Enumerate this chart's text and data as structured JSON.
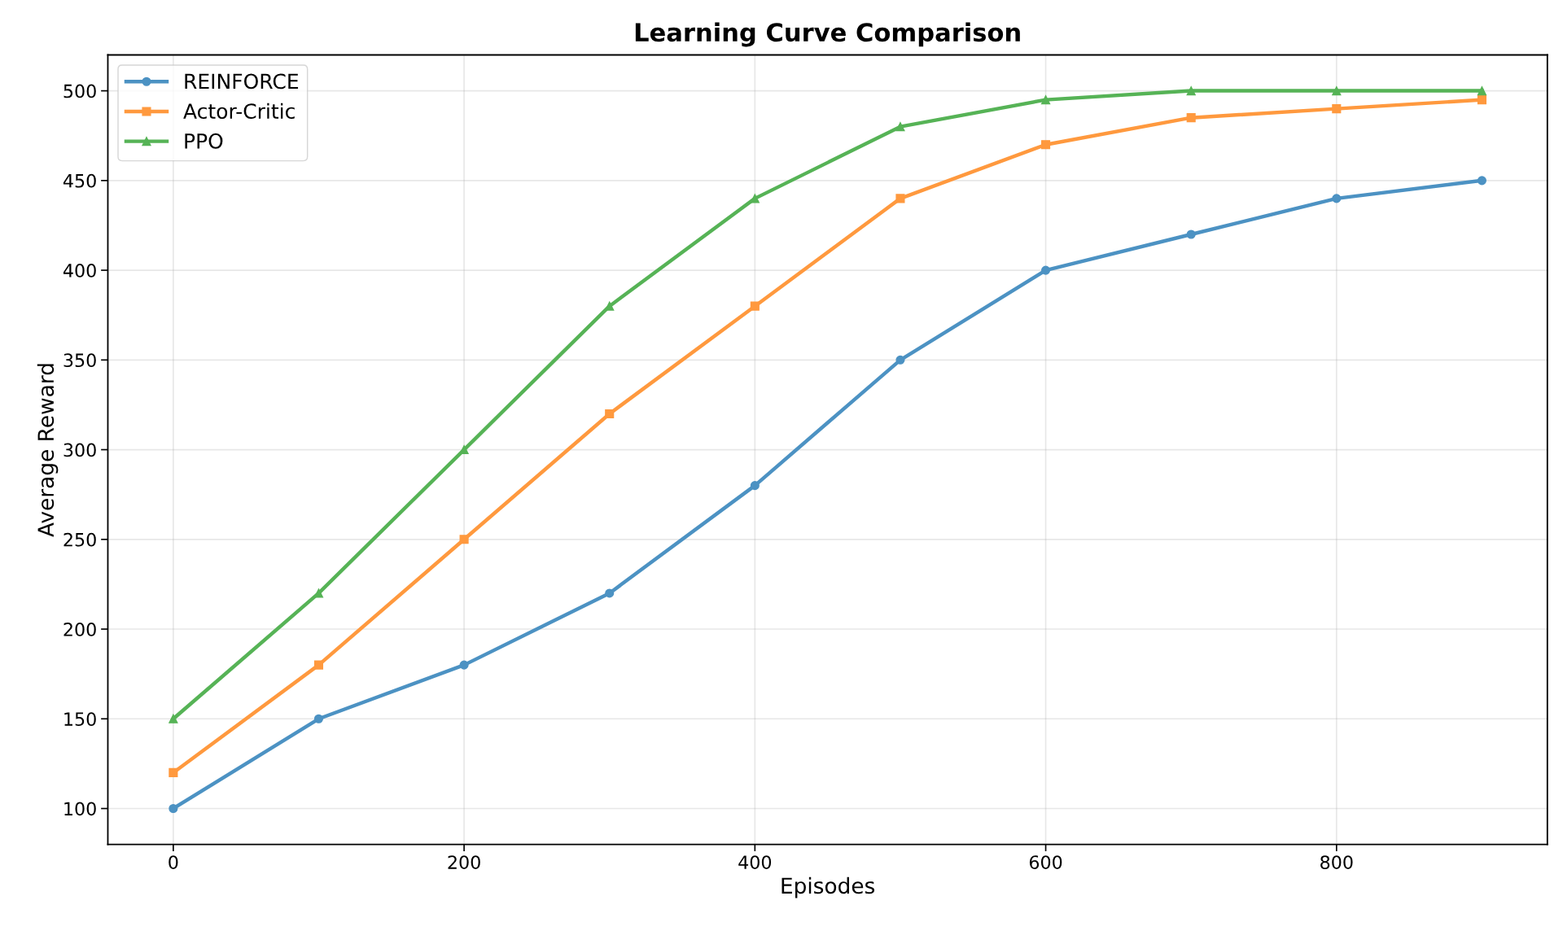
{
  "chart_data": {
    "type": "line",
    "title": "Learning Curve Comparison",
    "xlabel": "Episodes",
    "ylabel": "Average Reward",
    "x": [
      0,
      100,
      200,
      300,
      400,
      500,
      600,
      700,
      800,
      900
    ],
    "series": [
      {
        "name": "REINFORCE",
        "color": "#4c92c3",
        "marker": "circle",
        "values": [
          100,
          150,
          180,
          220,
          280,
          350,
          400,
          420,
          440,
          450
        ]
      },
      {
        "name": "Actor-Critic",
        "color": "#ff993e",
        "marker": "square",
        "values": [
          120,
          180,
          250,
          320,
          380,
          440,
          470,
          485,
          490,
          495
        ]
      },
      {
        "name": "PPO",
        "color": "#56b356",
        "marker": "triangle",
        "values": [
          150,
          220,
          300,
          380,
          440,
          480,
          495,
          500,
          500,
          500
        ]
      }
    ],
    "xlim": [
      -45,
      945
    ],
    "ylim": [
      80,
      520
    ],
    "xticks": [
      0,
      200,
      400,
      600,
      800
    ],
    "yticks": [
      100,
      150,
      200,
      250,
      300,
      350,
      400,
      450,
      500
    ],
    "grid": true,
    "legend": "top left",
    "line_style": "solid"
  }
}
